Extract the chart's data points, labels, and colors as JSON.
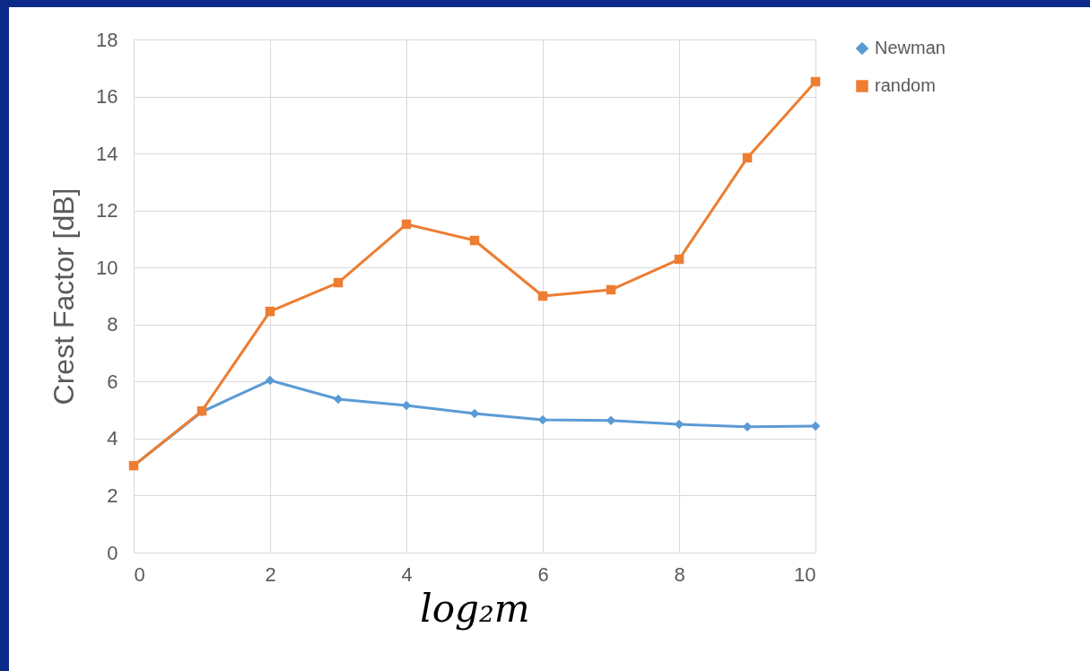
{
  "chart_data": {
    "type": "line",
    "xlabel": "log₂m",
    "ylabel": "Crest Factor [dB]",
    "x": [
      0,
      1,
      2,
      3,
      4,
      5,
      6,
      7,
      8,
      9,
      10
    ],
    "series": [
      {
        "name": "Newman",
        "color": "#5b9bd5",
        "marker": "diamond",
        "values": [
          3.05,
          4.94,
          6.04,
          5.38,
          5.16,
          4.88,
          4.66,
          4.63,
          4.5,
          4.41,
          4.44
        ]
      },
      {
        "name": "random",
        "color": "#ed7d31",
        "marker": "square",
        "values": [
          3.05,
          4.97,
          8.46,
          9.47,
          11.52,
          10.95,
          9.0,
          9.22,
          10.29,
          13.85,
          16.52
        ]
      }
    ],
    "xlim": [
      0,
      10
    ],
    "xticks": [
      0,
      2,
      4,
      6,
      8,
      10
    ],
    "ylim": [
      0,
      18
    ],
    "yticks": [
      0,
      2,
      4,
      6,
      8,
      10,
      12,
      14,
      16,
      18
    ],
    "grid": true,
    "legend": "right",
    "line_style": "solid"
  }
}
